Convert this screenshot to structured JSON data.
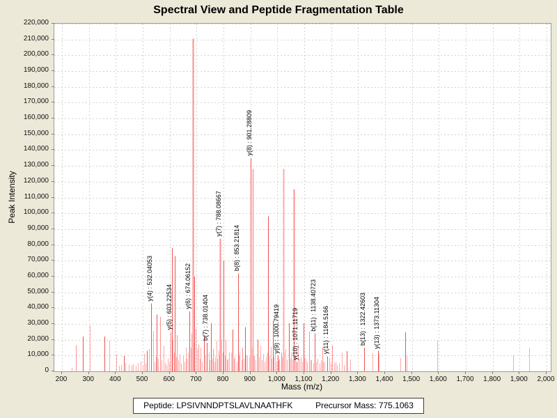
{
  "page": {
    "background": "#ece9d8"
  },
  "chart_data": {
    "type": "bar",
    "title": "Spectral View and Peptide Fragmentation Table",
    "xlabel": "Mass (m/z)",
    "ylabel": "Peak Intensity",
    "xlim": [
      200,
      2000
    ],
    "ylim": [
      0,
      220000
    ],
    "grid": "dashed-both",
    "legend": "none",
    "x_tick_labels": [
      "200",
      "300",
      "400",
      "500",
      "600",
      "700",
      "800",
      "900",
      "1,000",
      "1,100",
      "1,200",
      "1,300",
      "1,400",
      "1,500",
      "1,600",
      "1,700",
      "1,800",
      "1,900",
      "2,000"
    ],
    "y_tick_labels": [
      "0",
      "10,000",
      "20,000",
      "30,000",
      "40,000",
      "50,000",
      "60,000",
      "70,000",
      "80,000",
      "90,000",
      "100,000",
      "110,000",
      "120,000",
      "130,000",
      "140,000",
      "150,000",
      "160,000",
      "170,000",
      "180,000",
      "190,000",
      "200,000",
      "210,000",
      "220,000"
    ],
    "x_tick_step": 100,
    "y_tick_step": 10000,
    "shade_colors": [
      "#ffa8a8",
      "#ff8e8e",
      "#ee5050"
    ],
    "gridline_color": "#d4d2cd",
    "peaks": [
      [
        236,
        2500,
        0
      ],
      [
        253,
        16500,
        1
      ],
      [
        277,
        22000,
        2
      ],
      [
        304,
        29000,
        0
      ],
      [
        359,
        22000,
        2
      ],
      [
        376,
        19500,
        0
      ],
      [
        401,
        10500,
        0
      ],
      [
        413,
        3500,
        0
      ],
      [
        420,
        4200,
        0
      ],
      [
        430,
        9800,
        2
      ],
      [
        436,
        5300,
        0
      ],
      [
        447,
        4200,
        0
      ],
      [
        458,
        3800,
        0
      ],
      [
        465,
        4600,
        0
      ],
      [
        475,
        3500,
        0
      ],
      [
        482,
        5400,
        0
      ],
      [
        493,
        6300,
        0
      ],
      [
        500,
        4000,
        0
      ],
      [
        505,
        11000,
        0
      ],
      [
        511,
        5000,
        0
      ],
      [
        516,
        13000,
        2
      ],
      [
        524,
        14000,
        0
      ],
      [
        532.04,
        43000,
        2
      ],
      [
        538,
        25500,
        0
      ],
      [
        545,
        6000,
        0
      ],
      [
        549,
        9000,
        0
      ],
      [
        553,
        36000,
        2
      ],
      [
        558,
        8000,
        0
      ],
      [
        564,
        34500,
        1
      ],
      [
        570,
        7000,
        0
      ],
      [
        577,
        16000,
        0
      ],
      [
        583,
        5500,
        0
      ],
      [
        588,
        4000,
        0
      ],
      [
        592,
        8200,
        0
      ],
      [
        598,
        6000,
        0
      ],
      [
        603.23,
        25000,
        1
      ],
      [
        608,
        78000,
        2
      ],
      [
        612,
        20000,
        0
      ],
      [
        616,
        12000,
        0
      ],
      [
        619,
        73000,
        2
      ],
      [
        624,
        9000,
        0
      ],
      [
        628,
        23000,
        1
      ],
      [
        633,
        7000,
        0
      ],
      [
        638,
        10600,
        0
      ],
      [
        643,
        5000,
        0
      ],
      [
        649,
        9700,
        0
      ],
      [
        655,
        6000,
        0
      ],
      [
        660,
        15000,
        0
      ],
      [
        664,
        8000,
        0
      ],
      [
        668,
        12000,
        0
      ],
      [
        674.06,
        38000,
        2
      ],
      [
        678,
        15000,
        0
      ],
      [
        681,
        24000,
        0
      ],
      [
        686,
        210500,
        1
      ],
      [
        689,
        18000,
        0
      ],
      [
        692,
        60000,
        2
      ],
      [
        697,
        27000,
        0
      ],
      [
        703,
        14000,
        0
      ],
      [
        708,
        17000,
        1
      ],
      [
        713,
        8000,
        0
      ],
      [
        715,
        15000,
        0
      ],
      [
        720,
        6000,
        0
      ],
      [
        727,
        23000,
        2
      ],
      [
        733,
        10000,
        0
      ],
      [
        738.01,
        18000,
        2
      ],
      [
        745,
        12000,
        0
      ],
      [
        749,
        7000,
        0
      ],
      [
        753,
        30500,
        2
      ],
      [
        758,
        8000,
        0
      ],
      [
        761,
        14000,
        1
      ],
      [
        766,
        6000,
        0
      ],
      [
        770,
        9000,
        0
      ],
      [
        774,
        19500,
        0
      ],
      [
        778,
        8000,
        0
      ],
      [
        781,
        13000,
        0
      ],
      [
        785,
        10000,
        0
      ],
      [
        788.09,
        84000,
        1
      ],
      [
        793,
        20000,
        0
      ],
      [
        797,
        12000,
        0
      ],
      [
        800,
        70000,
        2
      ],
      [
        804,
        10000,
        0
      ],
      [
        808,
        20000,
        1
      ],
      [
        812,
        7000,
        0
      ],
      [
        815,
        8000,
        0
      ],
      [
        821,
        12000,
        0
      ],
      [
        828,
        11900,
        0
      ],
      [
        834,
        26500,
        2
      ],
      [
        838,
        8000,
        0
      ],
      [
        842,
        9000,
        0
      ],
      [
        848,
        6000,
        0
      ],
      [
        853.22,
        62000,
        2
      ],
      [
        857,
        10000,
        0
      ],
      [
        860,
        12000,
        0
      ],
      [
        866,
        7000,
        0
      ],
      [
        870,
        15000,
        1
      ],
      [
        875,
        8000,
        0
      ],
      [
        880,
        28000,
        2
      ],
      [
        884,
        10000,
        0
      ],
      [
        888,
        10000,
        0
      ],
      [
        895,
        9000,
        0
      ],
      [
        901.29,
        135000,
        2
      ],
      [
        905,
        15000,
        0
      ],
      [
        908,
        128000,
        0
      ],
      [
        912,
        10000,
        0
      ],
      [
        915,
        10000,
        0
      ],
      [
        920,
        7000,
        0
      ],
      [
        927,
        20000,
        2
      ],
      [
        932,
        9000,
        0
      ],
      [
        937,
        16000,
        0
      ],
      [
        943,
        7000,
        0
      ],
      [
        948,
        11000,
        0
      ],
      [
        953,
        6000,
        0
      ],
      [
        957,
        9000,
        0
      ],
      [
        962,
        12000,
        0
      ],
      [
        966,
        98000,
        2
      ],
      [
        971,
        10000,
        0
      ],
      [
        975,
        15400,
        0
      ],
      [
        979,
        8000,
        0
      ],
      [
        983,
        31700,
        2
      ],
      [
        987,
        9000,
        0
      ],
      [
        991,
        10600,
        0
      ],
      [
        996,
        6000,
        0
      ],
      [
        1000.79,
        10000,
        2
      ],
      [
        1005,
        7000,
        0
      ],
      [
        1008,
        8000,
        0
      ],
      [
        1014,
        12000,
        1
      ],
      [
        1018,
        9000,
        0
      ],
      [
        1022,
        128000,
        0
      ],
      [
        1026,
        12000,
        0
      ],
      [
        1030,
        14000,
        0
      ],
      [
        1036,
        7000,
        0
      ],
      [
        1043,
        30400,
        2
      ],
      [
        1048,
        8000,
        0
      ],
      [
        1052,
        12000,
        0
      ],
      [
        1057,
        7000,
        0
      ],
      [
        1062,
        115000,
        1
      ],
      [
        1066,
        9000,
        0
      ],
      [
        1071.12,
        6000,
        2
      ],
      [
        1077,
        16800,
        0
      ],
      [
        1082,
        8000,
        0
      ],
      [
        1086,
        9000,
        0
      ],
      [
        1092,
        6000,
        0
      ],
      [
        1097,
        30400,
        2
      ],
      [
        1101,
        9000,
        0
      ],
      [
        1105,
        8000,
        0
      ],
      [
        1110,
        6000,
        0
      ],
      [
        1118,
        25100,
        1
      ],
      [
        1123,
        7000,
        0
      ],
      [
        1127,
        7000,
        0
      ],
      [
        1133,
        5000,
        0
      ],
      [
        1138.41,
        24000,
        2
      ],
      [
        1144,
        6000,
        0
      ],
      [
        1150,
        8000,
        0
      ],
      [
        1157,
        5000,
        0
      ],
      [
        1162,
        7000,
        0
      ],
      [
        1167,
        15000,
        1
      ],
      [
        1171,
        6000,
        0
      ],
      [
        1175,
        6000,
        0
      ],
      [
        1184.52,
        9500,
        2
      ],
      [
        1192,
        8400,
        0
      ],
      [
        1197,
        5000,
        0
      ],
      [
        1203,
        16300,
        1
      ],
      [
        1210,
        5000,
        0
      ],
      [
        1216,
        6000,
        0
      ],
      [
        1222,
        4000,
        0
      ],
      [
        1230,
        5000,
        0
      ],
      [
        1240,
        11900,
        0
      ],
      [
        1247,
        4000,
        0
      ],
      [
        1258,
        12800,
        2
      ],
      [
        1270,
        7500,
        0
      ],
      [
        1322.43,
        15000,
        2
      ],
      [
        1353,
        11500,
        0
      ],
      [
        1373.11,
        13000,
        2
      ],
      [
        1377,
        11000,
        0
      ],
      [
        1458,
        8400,
        0
      ],
      [
        1475,
        24700,
        2
      ],
      [
        1479,
        10000,
        0
      ],
      [
        1593,
        19400,
        0
      ],
      [
        1877,
        10100,
        0
      ],
      [
        1936,
        14700,
        0
      ]
    ],
    "annotations": [
      {
        "label": "y(4) : 532.04053",
        "mz": 532.04,
        "intensity": 43000
      },
      {
        "label": "y(5) : 603.22534",
        "mz": 603.23,
        "intensity": 25000
      },
      {
        "label": "y(6) : 674.06152",
        "mz": 674.06,
        "intensity": 38000
      },
      {
        "label": "b(7) : 738.01404",
        "mz": 738.01,
        "intensity": 18000
      },
      {
        "label": "y(7) : 788.08667",
        "mz": 788.09,
        "intensity": 84000
      },
      {
        "label": "b(8) : 853.21814",
        "mz": 853.22,
        "intensity": 62000
      },
      {
        "label": "y(8) : 901.28809",
        "mz": 901.29,
        "intensity": 135000
      },
      {
        "label": "y(9) : 1000.79419",
        "mz": 1000.79,
        "intensity": 10000
      },
      {
        "label": "y(10) : 1071.11719",
        "mz": 1071.12,
        "intensity": 6000
      },
      {
        "label": "b(11) : 1138.40723",
        "mz": 1138.41,
        "intensity": 24000
      },
      {
        "label": "y(11) : 1184.5166",
        "mz": 1184.52,
        "intensity": 9500
      },
      {
        "label": "b(13) : 1322.42603",
        "mz": 1322.43,
        "intensity": 15000
      },
      {
        "label": "y(13) : 1373.11304",
        "mz": 1373.11,
        "intensity": 13000
      }
    ]
  },
  "footer": {
    "peptide_label": "Peptide:",
    "peptide_value": "LPSIVNNDPTSLAVLNAATHFK",
    "precursor_label": "Precursor Mass:",
    "precursor_value": "775.1063"
  }
}
